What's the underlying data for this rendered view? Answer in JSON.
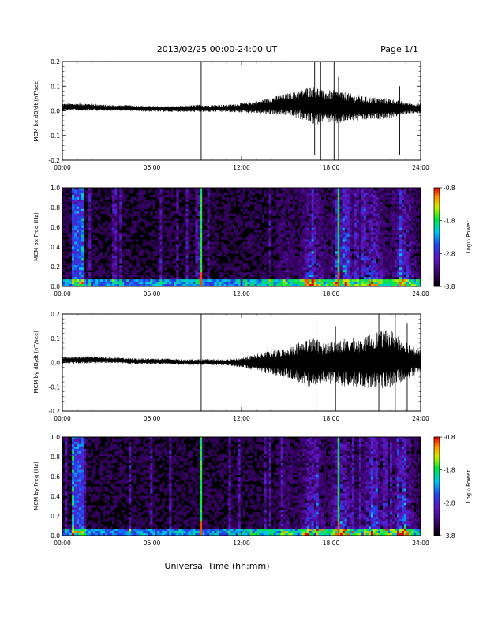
{
  "header": {
    "title": "2013/02/25  00:00-24:00 UT",
    "page": "Page 1/1"
  },
  "footer": {
    "xlabel": "Universal Time (hh:mm)"
  },
  "colorbar": {
    "label": "Log₁₀ Power",
    "ticks": [
      "-0.8",
      "-1.8",
      "-2.8",
      "-3.8"
    ],
    "range": [
      -3.8,
      -0.8
    ]
  },
  "chart_data": [
    {
      "type": "line",
      "ylabel": "MCM bx dB/dt (nT/sec)",
      "x_ticks": [
        "00:00",
        "06:00",
        "12:00",
        "18:00",
        "24:00"
      ],
      "xlim_hours": [
        0,
        24
      ],
      "ylim": [
        -0.2,
        0.2
      ],
      "y_ticks": [
        "0.2",
        "0.1",
        "0.0",
        "-0.1",
        "-0.2"
      ],
      "x_hours": [
        0,
        1,
        2,
        3,
        4,
        5,
        6,
        7,
        8,
        9,
        9.3,
        10,
        11,
        12,
        13,
        14,
        15,
        16,
        16.5,
        17,
        17.5,
        18,
        18.5,
        19,
        20,
        21,
        22,
        23,
        24
      ],
      "baseline": [
        0.015,
        0.015,
        0.015,
        0.012,
        0.012,
        0.01,
        0.008,
        0.008,
        0.008,
        0.01,
        0.01,
        0.01,
        0.01,
        0.012,
        0.015,
        0.02,
        0.025,
        0.025,
        0.025,
        0.02,
        0.02,
        0.015,
        0.015,
        0.015,
        0.01,
        0.01,
        0.01,
        0.01,
        0.01
      ],
      "amplitude": [
        0.015,
        0.015,
        0.015,
        0.012,
        0.012,
        0.012,
        0.012,
        0.012,
        0.012,
        0.015,
        0.015,
        0.015,
        0.015,
        0.02,
        0.025,
        0.035,
        0.045,
        0.06,
        0.075,
        0.08,
        0.06,
        0.07,
        0.07,
        0.06,
        0.05,
        0.045,
        0.04,
        0.025,
        0.02
      ],
      "spikes": [
        {
          "x": 9.3,
          "min": -0.2,
          "max": 0.2
        },
        {
          "x": 16.9,
          "min": -0.18,
          "max": 0.2
        },
        {
          "x": 17.3,
          "min": -0.2,
          "max": 0.2
        },
        {
          "x": 18.2,
          "min": -0.2,
          "max": 0.2
        },
        {
          "x": 18.5,
          "min": -0.2,
          "max": 0.14
        },
        {
          "x": 22.6,
          "min": -0.18,
          "max": 0.1
        }
      ]
    },
    {
      "type": "heatmap",
      "ylabel": "MCM bx Freq (Hz)",
      "x_ticks": [
        "00:00",
        "06:00",
        "12:00",
        "18:00",
        "24:00"
      ],
      "xlim_hours": [
        0,
        24
      ],
      "ylim": [
        0.0,
        1.0
      ],
      "y_ticks": [
        "1.0",
        "0.8",
        "0.6",
        "0.4",
        "0.2",
        "0.0"
      ],
      "bright_lines_hours": [
        9.3,
        18.5
      ],
      "dense_band_hours": [
        0.7,
        1.4
      ],
      "activity_hours": [
        14,
        24
      ]
    },
    {
      "type": "line",
      "ylabel": "MCM by dB/dt (nT/sec)",
      "x_ticks": [
        "00:00",
        "06:00",
        "12:00",
        "18:00",
        "24:00"
      ],
      "xlim_hours": [
        0,
        24
      ],
      "ylim": [
        -0.2,
        0.2
      ],
      "y_ticks": [
        "0.2",
        "0.1",
        "0.0",
        "-0.1",
        "-0.2"
      ],
      "x_hours": [
        0,
        1,
        2,
        3,
        4,
        5,
        6,
        7,
        8,
        9,
        9.3,
        10,
        11,
        12,
        13,
        14,
        15,
        16,
        16.5,
        17,
        17.5,
        18,
        18.5,
        19,
        20,
        21,
        22,
        23,
        24
      ],
      "baseline": [
        0.01,
        0.01,
        0.012,
        0.01,
        0.008,
        0.005,
        0.005,
        0.005,
        0.002,
        0.002,
        0.002,
        0.002,
        0.0,
        0.0,
        0.0,
        0.0,
        0.0,
        0.0,
        0.0,
        0.0,
        0.0,
        0.0,
        0.0,
        0.0,
        0.0,
        0.01,
        0.015,
        0.01,
        0.005
      ],
      "amplitude": [
        0.015,
        0.015,
        0.015,
        0.012,
        0.012,
        0.012,
        0.012,
        0.012,
        0.012,
        0.012,
        0.012,
        0.012,
        0.012,
        0.02,
        0.035,
        0.05,
        0.06,
        0.09,
        0.1,
        0.1,
        0.08,
        0.09,
        0.09,
        0.1,
        0.1,
        0.12,
        0.12,
        0.08,
        0.05
      ],
      "spikes": [
        {
          "x": 9.3,
          "min": -0.2,
          "max": 0.2
        },
        {
          "x": 17.0,
          "min": -0.2,
          "max": 0.18
        },
        {
          "x": 18.3,
          "min": -0.2,
          "max": 0.15
        },
        {
          "x": 21.2,
          "min": -0.2,
          "max": 0.2
        },
        {
          "x": 22.3,
          "min": -0.2,
          "max": 0.2
        },
        {
          "x": 23.1,
          "min": -0.2,
          "max": 0.16
        }
      ]
    },
    {
      "type": "heatmap",
      "ylabel": "MCM by Freq (Hz)",
      "x_ticks": [
        "00:00",
        "06:00",
        "12:00",
        "18:00",
        "24:00"
      ],
      "xlim_hours": [
        0,
        24
      ],
      "ylim": [
        0.0,
        1.0
      ],
      "y_ticks": [
        "1.0",
        "0.8",
        "0.6",
        "0.4",
        "0.2",
        "0.0"
      ],
      "bright_lines_hours": [
        9.3,
        18.5
      ],
      "dense_band_hours": [
        0.7,
        1.4
      ],
      "activity_hours": [
        14,
        24
      ]
    }
  ]
}
